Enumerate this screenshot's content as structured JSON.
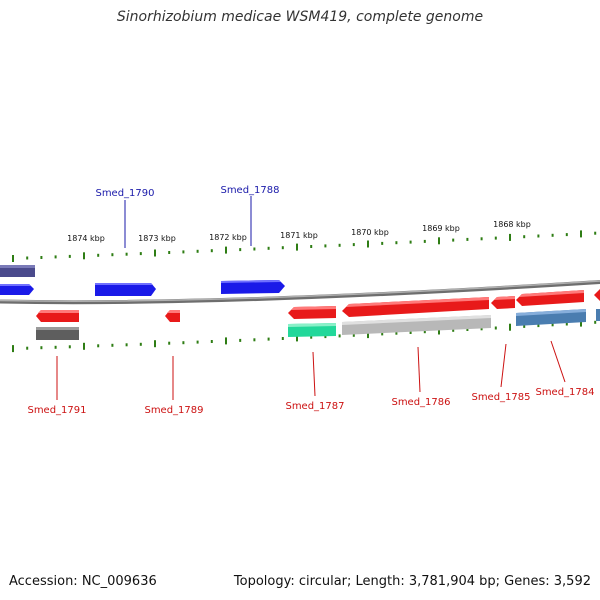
{
  "header": {
    "title": "Sinorhizobium medicae WSM419, complete genome"
  },
  "footer": {
    "accession": "Accession: NC_009636",
    "summary": "Topology: circular; Length: 3,781,904 bp; Genes: 3,592"
  },
  "axis": {
    "ticks": [
      "1874 kbp",
      "1873 kbp",
      "1872 kbp",
      "1871 kbp",
      "1870 kbp",
      "1869 kbp",
      "1868 kbp"
    ]
  },
  "colors": {
    "backbone": "#8a8a8a",
    "tick": "#2e7d14",
    "forward_label": "#1a1aaa",
    "reverse_label": "#cc1111",
    "forward_gene": "#1a1ae8",
    "reverse_gene": "#e81a1a",
    "gene_dark": "#4a4a8c",
    "gene_gray": "#6a6a6a",
    "gene_light": "#bcbcbc",
    "gene_green": "#22d89a",
    "gene_steel": "#4a7db0"
  },
  "labels": {
    "forward": [
      "Smed_1790",
      "Smed_1788"
    ],
    "reverse": [
      "Smed_1791",
      "Smed_1789",
      "Smed_1787",
      "Smed_1786",
      "Smed_1785",
      "Smed_1784"
    ]
  }
}
